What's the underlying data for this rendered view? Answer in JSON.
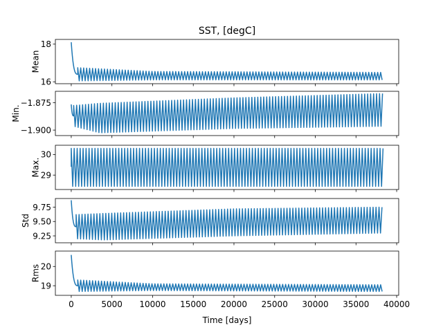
{
  "chart_data": {
    "type": "line",
    "title": "SST, [degC]",
    "xlabel": "Time [days]",
    "x_ticks": [
      0,
      5000,
      10000,
      15000,
      20000,
      25000,
      30000,
      35000,
      40000
    ],
    "x_tick_labels": [
      "0",
      "5000",
      "10000",
      "15000",
      "20000",
      "25000",
      "30000",
      "35000",
      "40000"
    ],
    "xlim": [
      -1950,
      40250
    ],
    "x_end": 38350,
    "series_color": "#1f77b4",
    "panels": [
      {
        "ylabel": "Mean",
        "ylim": [
          15.9,
          18.25
        ],
        "y_ticks": [
          16,
          18
        ],
        "y_tick_labels": [
          "16",
          "18"
        ],
        "initial_peak": 18.1,
        "settle_days": 800,
        "band": [
          {
            "day": 800,
            "low": 16.05,
            "high": 16.75
          },
          {
            "day": 10000,
            "low": 16.1,
            "high": 16.55
          },
          {
            "day": 38350,
            "low": 16.1,
            "high": 16.5
          }
        ]
      },
      {
        "ylabel": "Min.",
        "ylim": [
          -1.905,
          -1.8645
        ],
        "y_ticks": [
          -1.875,
          -1.9
        ],
        "y_tick_labels": [
          "−1.875",
          "−1.900"
        ],
        "initial_peak": -1.8765,
        "settle_days": 300,
        "band": [
          {
            "day": 300,
            "low": -1.8965,
            "high": -1.8775
          },
          {
            "day": 3500,
            "low": -1.9025,
            "high": -1.8755
          },
          {
            "day": 20000,
            "low": -1.8985,
            "high": -1.8705
          },
          {
            "day": 38350,
            "low": -1.8965,
            "high": -1.8665
          }
        ]
      },
      {
        "ylabel": "Max.",
        "ylim": [
          28.3,
          30.45
        ],
        "y_ticks": [
          29,
          30
        ],
        "y_tick_labels": [
          "29",
          "30"
        ],
        "initial_peak": 29.4,
        "settle_days": 0,
        "band": [
          {
            "day": 0,
            "low": 28.45,
            "high": 30.3
          },
          {
            "day": 38350,
            "low": 28.45,
            "high": 30.3
          }
        ]
      },
      {
        "ylabel": "Std",
        "ylim": [
          9.13,
          9.9
        ],
        "y_ticks": [
          9.25,
          9.5,
          9.75
        ],
        "y_tick_labels": [
          "9.25",
          "9.50",
          "9.75"
        ],
        "initial_peak": 9.87,
        "settle_days": 600,
        "band": [
          {
            "day": 600,
            "low": 9.2,
            "high": 9.62
          },
          {
            "day": 4000,
            "low": 9.18,
            "high": 9.64
          },
          {
            "day": 20000,
            "low": 9.25,
            "high": 9.72
          },
          {
            "day": 38350,
            "low": 9.3,
            "high": 9.75
          }
        ]
      },
      {
        "ylabel": "Rms",
        "ylim": [
          18.5,
          20.8
        ],
        "y_ticks": [
          19,
          20
        ],
        "y_tick_labels": [
          "19",
          "20"
        ],
        "initial_peak": 20.6,
        "settle_days": 800,
        "band": [
          {
            "day": 800,
            "low": 18.7,
            "high": 19.3
          },
          {
            "day": 10000,
            "low": 18.75,
            "high": 19.1
          },
          {
            "day": 38350,
            "low": 18.7,
            "high": 19.05
          }
        ]
      }
    ]
  }
}
